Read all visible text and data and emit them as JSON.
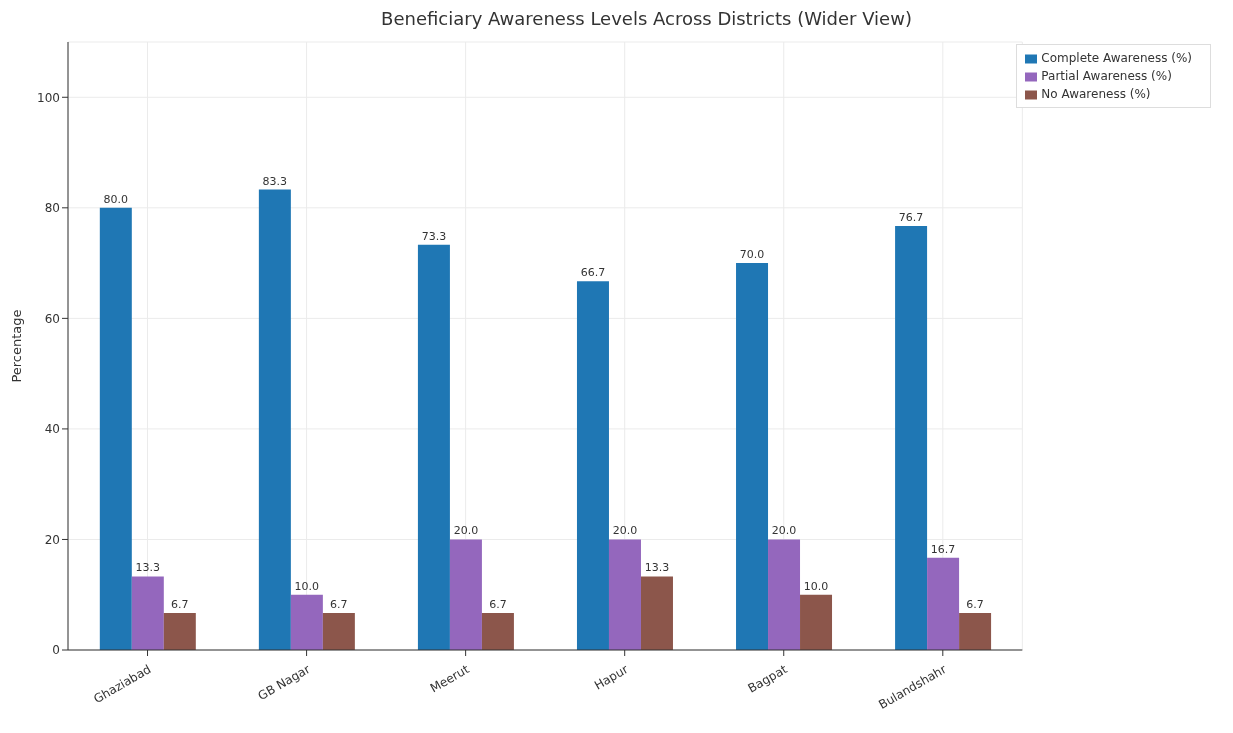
{
  "chart_data": {
    "type": "bar",
    "title": "Beneficiary Awareness Levels Across Districts (Wider View)",
    "ylabel": "Percentage",
    "categories": [
      "Ghaziabad",
      "GB Nagar",
      "Meerut",
      "Hapur",
      "Bagpat",
      "Bulandshahr"
    ],
    "series": [
      {
        "name": "Complete Awareness (%)",
        "color": "#1f77b4",
        "values": [
          80.0,
          83.3,
          73.3,
          66.7,
          70.0,
          76.7
        ],
        "value_labels": [
          "80.0",
          "83.3",
          "73.3",
          "66.7",
          "70.0",
          "76.7"
        ]
      },
      {
        "name": "Partial Awareness (%)",
        "color": "#9467bd",
        "values": [
          13.3,
          10.0,
          20.0,
          20.0,
          20.0,
          16.7
        ],
        "value_labels": [
          "13.3",
          "10.0",
          "20.0",
          "20.0",
          "20.0",
          "16.7"
        ]
      },
      {
        "name": "No Awareness (%)",
        "color": "#8c564b",
        "values": [
          6.7,
          6.7,
          6.7,
          13.3,
          10.0,
          6.7
        ],
        "value_labels": [
          "6.7",
          "6.7",
          "6.7",
          "13.3",
          "10.0",
          "6.7"
        ]
      }
    ],
    "ylim": [
      0,
      110
    ],
    "yticks": [
      0,
      20,
      40,
      60,
      80,
      100
    ],
    "grid": true,
    "legend": "top right"
  }
}
